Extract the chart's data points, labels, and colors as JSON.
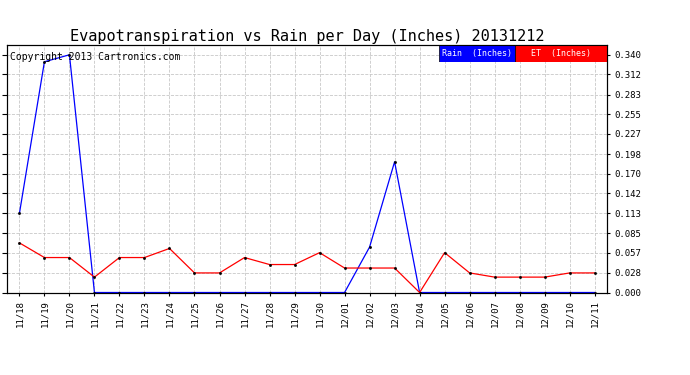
{
  "title": "Evapotranspiration vs Rain per Day (Inches) 20131212",
  "copyright": "Copyright 2013 Cartronics.com",
  "legend_rain": "Rain  (Inches)",
  "legend_et": "ET  (Inches)",
  "x_labels": [
    "11/18",
    "11/19",
    "11/20",
    "11/21",
    "11/22",
    "11/23",
    "11/24",
    "11/25",
    "11/26",
    "11/27",
    "11/28",
    "11/29",
    "11/30",
    "12/01",
    "12/02",
    "12/03",
    "12/04",
    "12/05",
    "12/06",
    "12/07",
    "12/08",
    "12/09",
    "12/10",
    "12/11"
  ],
  "rain_values": [
    0.113,
    0.33,
    0.34,
    0.0,
    0.0,
    0.0,
    0.0,
    0.0,
    0.0,
    0.0,
    0.0,
    0.0,
    0.0,
    0.0,
    0.065,
    0.187,
    0.0,
    0.0,
    0.0,
    0.0,
    0.0,
    0.0,
    0.0,
    0.0
  ],
  "et_values": [
    0.071,
    0.05,
    0.05,
    0.022,
    0.05,
    0.05,
    0.063,
    0.028,
    0.028,
    0.05,
    0.04,
    0.04,
    0.057,
    0.035,
    0.035,
    0.035,
    0.0,
    0.057,
    0.028,
    0.022,
    0.022,
    0.022,
    0.028,
    0.028
  ],
  "ylim": [
    0.0,
    0.354
  ],
  "yticks": [
    0.0,
    0.028,
    0.057,
    0.085,
    0.113,
    0.142,
    0.17,
    0.198,
    0.227,
    0.255,
    0.283,
    0.312,
    0.34
  ],
  "rain_color": "#0000ff",
  "et_color": "#ff0000",
  "background_color": "#ffffff",
  "grid_color": "#c8c8c8",
  "title_fontsize": 11,
  "tick_fontsize": 6.5,
  "copyright_fontsize": 7
}
